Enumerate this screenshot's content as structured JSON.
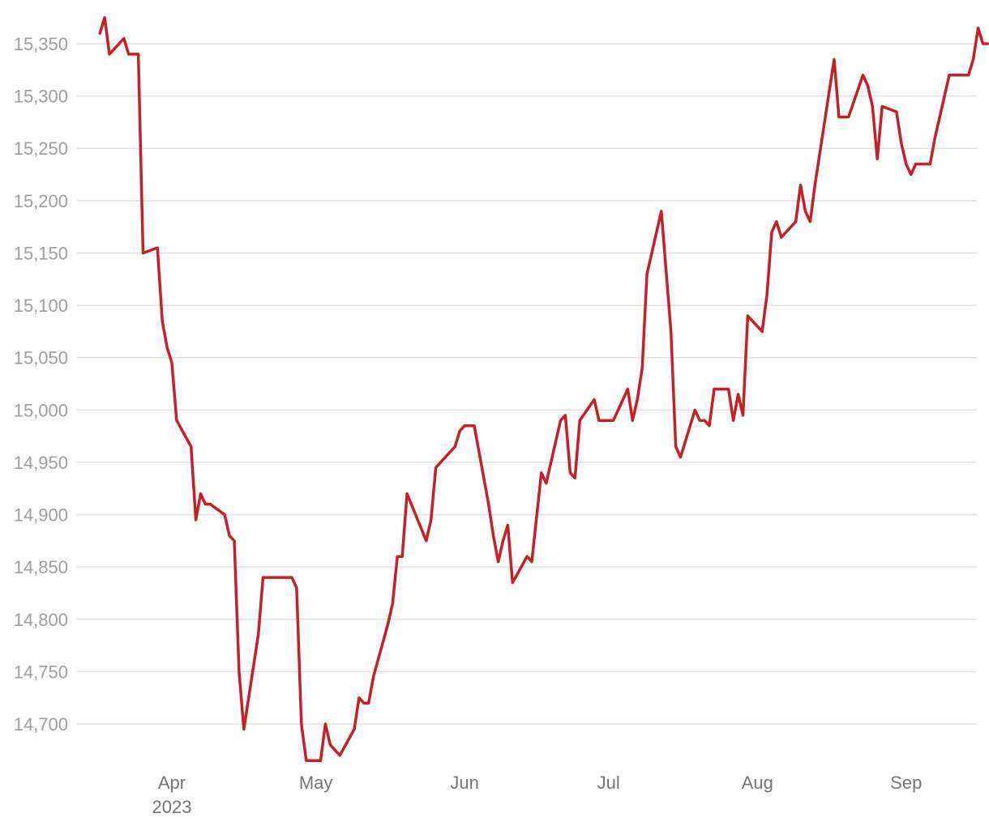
{
  "chart_data": {
    "type": "line",
    "title": "",
    "xlabel": "",
    "ylabel": "",
    "grid": true,
    "line_color": "#c62026",
    "gridline_color": "#e0e0e0",
    "y_tick_labels": [
      "14,700",
      "14,750",
      "14,800",
      "14,850",
      "14,900",
      "14,950",
      "15,000",
      "15,050",
      "15,100",
      "15,150",
      "15,200",
      "15,250",
      "15,300",
      "15,350"
    ],
    "y_ticks": [
      14700,
      14750,
      14800,
      14850,
      14900,
      14950,
      15000,
      15050,
      15100,
      15150,
      15200,
      15250,
      15300,
      15350
    ],
    "x_ticks": [
      {
        "date": "2023-04-01",
        "label": "Apr",
        "sublabel": "2023"
      },
      {
        "date": "2023-05-01",
        "label": "May",
        "sublabel": ""
      },
      {
        "date": "2023-06-01",
        "label": "Jun",
        "sublabel": ""
      },
      {
        "date": "2023-07-01",
        "label": "Jul",
        "sublabel": ""
      },
      {
        "date": "2023-08-01",
        "label": "Aug",
        "sublabel": ""
      },
      {
        "date": "2023-09-01",
        "label": "Sep",
        "sublabel": ""
      }
    ],
    "series": [
      {
        "points": [
          [
            "2023-03-17",
            15360
          ],
          [
            "2023-03-18",
            15375
          ],
          [
            "2023-03-19",
            15340
          ],
          [
            "2023-03-22",
            15355
          ],
          [
            "2023-03-23",
            15340
          ],
          [
            "2023-03-24",
            15340
          ],
          [
            "2023-03-25",
            15340
          ],
          [
            "2023-03-26",
            15150
          ],
          [
            "2023-03-29",
            15155
          ],
          [
            "2023-03-30",
            15085
          ],
          [
            "2023-03-31",
            15060
          ],
          [
            "2023-04-01",
            15045
          ],
          [
            "2023-04-02",
            14990
          ],
          [
            "2023-04-05",
            14965
          ],
          [
            "2023-04-06",
            14895
          ],
          [
            "2023-04-07",
            14920
          ],
          [
            "2023-04-08",
            14910
          ],
          [
            "2023-04-09",
            14910
          ],
          [
            "2023-04-12",
            14900
          ],
          [
            "2023-04-13",
            14880
          ],
          [
            "2023-04-14",
            14875
          ],
          [
            "2023-04-15",
            14750
          ],
          [
            "2023-04-16",
            14695
          ],
          [
            "2023-04-19",
            14785
          ],
          [
            "2023-04-20",
            14840
          ],
          [
            "2023-04-26",
            14840
          ],
          [
            "2023-04-27",
            14830
          ],
          [
            "2023-04-28",
            14700
          ],
          [
            "2023-04-29",
            14665
          ],
          [
            "2023-05-02",
            14665
          ],
          [
            "2023-05-03",
            14700
          ],
          [
            "2023-05-04",
            14680
          ],
          [
            "2023-05-06",
            14670
          ],
          [
            "2023-05-09",
            14695
          ],
          [
            "2023-05-10",
            14725
          ],
          [
            "2023-05-11",
            14720
          ],
          [
            "2023-05-12",
            14720
          ],
          [
            "2023-05-13",
            14745
          ],
          [
            "2023-05-16",
            14795
          ],
          [
            "2023-05-17",
            14815
          ],
          [
            "2023-05-18",
            14860
          ],
          [
            "2023-05-19",
            14860
          ],
          [
            "2023-05-20",
            14920
          ],
          [
            "2023-05-24",
            14875
          ],
          [
            "2023-05-25",
            14895
          ],
          [
            "2023-05-26",
            14945
          ],
          [
            "2023-05-30",
            14965
          ],
          [
            "2023-05-31",
            14980
          ],
          [
            "2023-06-01",
            14985
          ],
          [
            "2023-06-02",
            14985
          ],
          [
            "2023-06-03",
            14985
          ],
          [
            "2023-06-06",
            14910
          ],
          [
            "2023-06-07",
            14880
          ],
          [
            "2023-06-08",
            14855
          ],
          [
            "2023-06-09",
            14875
          ],
          [
            "2023-06-10",
            14890
          ],
          [
            "2023-06-11",
            14835
          ],
          [
            "2023-06-14",
            14860
          ],
          [
            "2023-06-15",
            14855
          ],
          [
            "2023-06-17",
            14940
          ],
          [
            "2023-06-18",
            14930
          ],
          [
            "2023-06-21",
            14990
          ],
          [
            "2023-06-22",
            14995
          ],
          [
            "2023-06-23",
            14940
          ],
          [
            "2023-06-24",
            14935
          ],
          [
            "2023-06-25",
            14990
          ],
          [
            "2023-06-28",
            15010
          ],
          [
            "2023-06-29",
            14990
          ],
          [
            "2023-07-01",
            14990
          ],
          [
            "2023-07-02",
            14990
          ],
          [
            "2023-07-05",
            15020
          ],
          [
            "2023-07-06",
            14990
          ],
          [
            "2023-07-07",
            15010
          ],
          [
            "2023-07-08",
            15040
          ],
          [
            "2023-07-09",
            15130
          ],
          [
            "2023-07-12",
            15190
          ],
          [
            "2023-07-14",
            15075
          ],
          [
            "2023-07-15",
            14965
          ],
          [
            "2023-07-16",
            14955
          ],
          [
            "2023-07-19",
            15000
          ],
          [
            "2023-07-20",
            14990
          ],
          [
            "2023-07-21",
            14990
          ],
          [
            "2023-07-22",
            14985
          ],
          [
            "2023-07-23",
            15020
          ],
          [
            "2023-07-26",
            15020
          ],
          [
            "2023-07-27",
            14990
          ],
          [
            "2023-07-28",
            15015
          ],
          [
            "2023-07-29",
            14995
          ],
          [
            "2023-07-30",
            15090
          ],
          [
            "2023-08-02",
            15075
          ],
          [
            "2023-08-03",
            15110
          ],
          [
            "2023-08-04",
            15170
          ],
          [
            "2023-08-05",
            15180
          ],
          [
            "2023-08-06",
            15165
          ],
          [
            "2023-08-09",
            15180
          ],
          [
            "2023-08-10",
            15215
          ],
          [
            "2023-08-11",
            15190
          ],
          [
            "2023-08-12",
            15180
          ],
          [
            "2023-08-13",
            15215
          ],
          [
            "2023-08-16",
            15305
          ],
          [
            "2023-08-17",
            15335
          ],
          [
            "2023-08-18",
            15280
          ],
          [
            "2023-08-20",
            15280
          ],
          [
            "2023-08-23",
            15320
          ],
          [
            "2023-08-24",
            15310
          ],
          [
            "2023-08-25",
            15290
          ],
          [
            "2023-08-26",
            15240
          ],
          [
            "2023-08-27",
            15290
          ],
          [
            "2023-08-30",
            15285
          ],
          [
            "2023-08-31",
            15255
          ],
          [
            "2023-09-01",
            15235
          ],
          [
            "2023-09-02",
            15225
          ],
          [
            "2023-09-03",
            15235
          ],
          [
            "2023-09-06",
            15235
          ],
          [
            "2023-09-07",
            15260
          ],
          [
            "2023-09-10",
            15320
          ],
          [
            "2023-09-14",
            15320
          ],
          [
            "2023-09-15",
            15335
          ],
          [
            "2023-09-16",
            15365
          ],
          [
            "2023-09-17",
            15350
          ],
          [
            "2023-09-18",
            15350
          ]
        ]
      }
    ]
  }
}
